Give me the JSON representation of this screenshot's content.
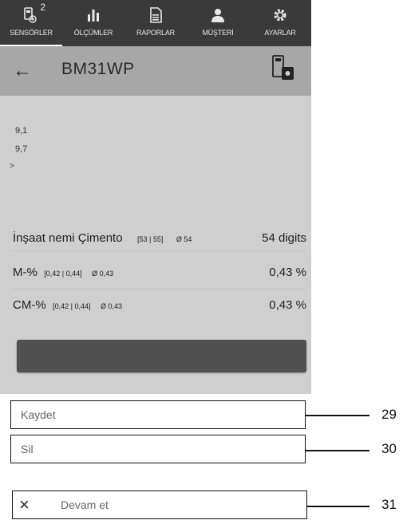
{
  "tabs": [
    {
      "label": "SENSÖRLER",
      "icon": "sensor-icon",
      "badge": "2",
      "active": true
    },
    {
      "label": "ÖLÇÜMLER",
      "icon": "bar-chart-icon"
    },
    {
      "label": "RAPORLAR",
      "icon": "report-icon"
    },
    {
      "label": "MÜŞTERİ",
      "icon": "person-icon"
    },
    {
      "label": "AYARLAR",
      "icon": "gear-icon"
    }
  ],
  "header": {
    "title": "BM31WP",
    "back_icon": "←"
  },
  "values": {
    "v1": "9,1",
    "v2": "9,7",
    "v3": ">"
  },
  "rows": [
    {
      "main": "İnşaat nemi Çimento",
      "range": "[53 | 55]",
      "avg": "Ø 54",
      "value": "54 digits"
    },
    {
      "main": "M-%",
      "range": "[0,42 | 0,44]",
      "avg": "Ø 0,43",
      "value": "0,43 %"
    },
    {
      "main": "CM-%",
      "range": "[0,42 | 0,44]",
      "avg": "Ø 0,43",
      "value": "0,43 %"
    }
  ],
  "menu": {
    "save": "Kaydet",
    "delete": "Sil",
    "continue": "Devam et",
    "close_icon": "×"
  },
  "callouts": [
    "29",
    "30",
    "31"
  ]
}
